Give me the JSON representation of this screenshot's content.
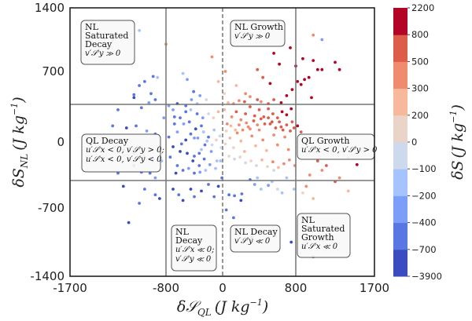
{
  "chart_data": {
    "type": "scatter",
    "title": "",
    "xlabel": "δS_QL (J kg⁻¹)",
    "ylabel": "δS_NL (J kg⁻¹)",
    "xlabel_main": "δ𝒮",
    "xlabel_sub": "QL",
    "xlabel_unit": "(J kg",
    "xlabel_exp": "−1",
    "xlabel_close": ")",
    "ylabel_main": "δS",
    "ylabel_sub": "NL",
    "ylabel_unit": "(J kg",
    "ylabel_exp": "−1",
    "ylabel_close": ")",
    "xlim": [
      -1700,
      1700
    ],
    "ylim": [
      -1400,
      1400
    ],
    "xticks": [
      -1700,
      -800,
      0,
      800,
      1700
    ],
    "xtick_labels": [
      "-1700",
      "-800",
      "0",
      "800",
      "1700"
    ],
    "yticks": [
      1400,
      700,
      0,
      -700,
      -1400
    ],
    "ytick_labels": [
      "1400",
      "700",
      "0",
      "-700",
      "-1400"
    ],
    "grid": false,
    "reference_lines": {
      "vertical_solid": [
        -800,
        800
      ],
      "vertical_dashed": [
        0
      ],
      "horizontal_solid": [
        350,
        -350
      ]
    },
    "colorbar": {
      "label": "δS (J kg⁻¹)",
      "label_main": "δS",
      "label_unit": "(J kg",
      "label_exp": "−1",
      "label_close": ")",
      "boundaries": [
        -3900,
        -700,
        -400,
        -200,
        -100,
        0,
        200,
        300,
        500,
        800,
        2200
      ],
      "tick_labels": [
        "2200",
        "800",
        "500",
        "300",
        "200",
        "0",
        "−100",
        "−200",
        "−400",
        "−700",
        "−3900"
      ],
      "colors": [
        "#3b4cc0",
        "#5977e3",
        "#7b9ff9",
        "#a5c3fe",
        "#cdd9ec",
        "#ead4c8",
        "#f7b89c",
        "#f08b6e",
        "#dc5d4a",
        "#b40426"
      ]
    },
    "annotations": [
      {
        "id": "nl-saturated-decay",
        "lines": [
          "NL",
          "Saturated",
          "Decay"
        ],
        "math": [
          "v′𝒮′y ≫ 0"
        ]
      },
      {
        "id": "nl-growth",
        "lines": [
          "NL Growth"
        ],
        "math": [
          "v′𝒮′y ≫ 0"
        ]
      },
      {
        "id": "ql-decay",
        "lines": [
          "QL Decay"
        ],
        "math": [
          "u′𝒮′x < 0, v′𝒮′y > 0;",
          "u′𝒮′x < 0, v′𝒮′y < 0"
        ]
      },
      {
        "id": "ql-growth",
        "lines": [
          "QL Growth"
        ],
        "math": [
          "u′𝒮′x < 0, v′𝒮′y > 0"
        ]
      },
      {
        "id": "nl-decay-left",
        "lines": [
          "NL",
          "Decay"
        ],
        "math": [
          "u′𝒮′x ≪ 0;",
          "v′𝒮′y ≪ 0"
        ]
      },
      {
        "id": "nl-decay",
        "lines": [
          "NL Decay"
        ],
        "math": [
          "v′𝒮′y ≪ 0"
        ]
      },
      {
        "id": "nl-saturated-growth",
        "lines": [
          "NL",
          "Saturated",
          "Growth"
        ],
        "math": [
          "u′𝒮′x ≪ 0"
        ]
      }
    ],
    "points_note": "Approximately 600 points; values approximate, color = δS",
    "points": [
      [
        -1300,
        1050,
        -700
      ],
      [
        -1050,
        1150,
        -200
      ],
      [
        -800,
        1000,
        300
      ],
      [
        -920,
        650,
        -500
      ],
      [
        -880,
        640,
        -150
      ],
      [
        -1000,
        600,
        -600
      ],
      [
        -1050,
        560,
        -550
      ],
      [
        -940,
        480,
        -600
      ],
      [
        -1100,
        470,
        -450
      ],
      [
        -1100,
        440,
        -900
      ],
      [
        -900,
        420,
        -500
      ],
      [
        -960,
        390,
        -300
      ],
      [
        -760,
        360,
        -400
      ],
      [
        -1030,
        340,
        -600
      ],
      [
        -1250,
        320,
        -600
      ],
      [
        -820,
        240,
        -300
      ],
      [
        -1300,
        160,
        -600
      ],
      [
        -1170,
        140,
        -900
      ],
      [
        -1080,
        160,
        -500
      ],
      [
        -980,
        110,
        -400
      ],
      [
        -900,
        80,
        -500
      ],
      [
        -1280,
        -50,
        -700
      ],
      [
        -1200,
        -90,
        -900
      ],
      [
        -1100,
        -120,
        -600
      ],
      [
        -1000,
        -160,
        -500
      ],
      [
        -920,
        -180,
        -800
      ],
      [
        -840,
        -200,
        -150
      ],
      [
        -1100,
        -250,
        -900
      ],
      [
        -1250,
        -330,
        -600
      ],
      [
        -1030,
        -320,
        -700
      ],
      [
        -950,
        -330,
        -600
      ],
      [
        -900,
        -380,
        -400
      ],
      [
        -1200,
        -470,
        -800
      ],
      [
        -1000,
        -500,
        -700
      ],
      [
        -900,
        -560,
        -700
      ],
      [
        -860,
        -600,
        -900
      ],
      [
        -1050,
        -650,
        -600
      ],
      [
        -1150,
        -850,
        -900
      ],
      [
        -700,
        -500,
        -900
      ],
      [
        -620,
        -560,
        -700
      ],
      [
        -560,
        -620,
        -900
      ],
      [
        -450,
        -500,
        -900
      ],
      [
        -400,
        -580,
        -700
      ],
      [
        -300,
        -520,
        -900
      ],
      [
        -200,
        -450,
        -700
      ],
      [
        -120,
        -580,
        -700
      ],
      [
        -60,
        -470,
        -900
      ],
      [
        -10,
        -380,
        -600
      ],
      [
        70,
        -560,
        -600
      ],
      [
        130,
        -570,
        -700
      ],
      [
        210,
        -550,
        -700
      ],
      [
        300,
        -400,
        -700
      ],
      [
        350,
        -450,
        -400
      ],
      [
        420,
        -500,
        -200
      ],
      [
        500,
        -460,
        -300
      ],
      [
        540,
        -420,
        -150
      ],
      [
        600,
        -500,
        -100
      ],
      [
        650,
        -540,
        -200
      ],
      [
        700,
        -380,
        -150
      ],
      [
        780,
        -500,
        -150
      ],
      [
        200,
        -620,
        -900
      ],
      [
        40,
        -720,
        -700
      ],
      [
        120,
        -800,
        -700
      ],
      [
        320,
        -1000,
        -900
      ],
      [
        750,
        -1050,
        -900
      ],
      [
        900,
        -1100,
        -700
      ],
      [
        1000,
        -1200,
        -800
      ],
      [
        380,
        -380,
        -200
      ],
      [
        560,
        -300,
        -100
      ],
      [
        880,
        -540,
        100
      ],
      [
        920,
        -470,
        400
      ],
      [
        960,
        -350,
        300
      ],
      [
        1100,
        -300,
        350
      ],
      [
        1300,
        -380,
        300
      ],
      [
        1150,
        -250,
        600
      ],
      [
        1050,
        -200,
        700
      ],
      [
        1400,
        -170,
        700
      ],
      [
        1500,
        -240,
        900
      ],
      [
        1250,
        -420,
        600
      ],
      [
        1400,
        -520,
        250
      ],
      [
        1000,
        -600,
        200
      ],
      [
        1000,
        1100,
        300
      ],
      [
        1100,
        1050,
        -300
      ],
      [
        -400,
        -150,
        -700
      ],
      [
        -600,
        -100,
        -900
      ],
      [
        -700,
        -50,
        -800
      ],
      [
        -520,
        20,
        -900
      ],
      [
        -450,
        80,
        -700
      ],
      [
        -380,
        130,
        -900
      ],
      [
        -300,
        160,
        -600
      ],
      [
        -250,
        -30,
        -600
      ],
      [
        -200,
        50,
        -500
      ],
      [
        -160,
        -100,
        -300
      ],
      [
        -120,
        120,
        -200
      ],
      [
        -80,
        -200,
        -150
      ],
      [
        -40,
        60,
        -100
      ],
      [
        -600,
        240,
        -700
      ],
      [
        -520,
        300,
        -500
      ],
      [
        -450,
        320,
        -150
      ],
      [
        -360,
        280,
        -500
      ],
      [
        -280,
        240,
        -300
      ],
      [
        -200,
        280,
        -100
      ],
      [
        -130,
        240,
        100
      ],
      [
        -60,
        300,
        250
      ],
      [
        20,
        320,
        200
      ],
      [
        -680,
        180,
        -600
      ],
      [
        -640,
        100,
        -400
      ],
      [
        -580,
        -20,
        -500
      ],
      [
        -500,
        -120,
        -900
      ],
      [
        -420,
        -200,
        -800
      ],
      [
        -330,
        -250,
        -700
      ],
      [
        -260,
        -180,
        -500
      ],
      [
        -180,
        -240,
        -400
      ],
      [
        -100,
        -280,
        -200
      ],
      [
        -30,
        -200,
        -150
      ],
      [
        -640,
        -250,
        -600
      ],
      [
        -560,
        -300,
        -700
      ],
      [
        -480,
        -280,
        -400
      ],
      [
        -400,
        -330,
        -500
      ],
      [
        -320,
        -320,
        -300
      ],
      [
        -240,
        -300,
        -200
      ],
      [
        -700,
        320,
        -300
      ],
      [
        -660,
        -330,
        -800
      ],
      [
        -760,
        50,
        -500
      ],
      [
        -740,
        -160,
        -600
      ],
      [
        -350,
        40,
        -300
      ],
      [
        -300,
        -80,
        -150
      ],
      [
        -220,
        10,
        -200
      ],
      [
        -150,
        -30,
        -50
      ],
      [
        -90,
        20,
        50
      ],
      [
        -20,
        -60,
        -100
      ],
      [
        -680,
        250,
        -500
      ],
      [
        -550,
        180,
        -300
      ],
      [
        -470,
        200,
        -600
      ],
      [
        -400,
        40,
        -400
      ],
      [
        -330,
        -120,
        -700
      ],
      [
        -270,
        100,
        -150
      ],
      [
        30,
        -20,
        150
      ],
      [
        80,
        40,
        250
      ],
      [
        120,
        -60,
        150
      ],
      [
        160,
        90,
        300
      ],
      [
        200,
        10,
        250
      ],
      [
        240,
        -100,
        200
      ],
      [
        280,
        150,
        400
      ],
      [
        320,
        60,
        350
      ],
      [
        360,
        -40,
        250
      ],
      [
        400,
        120,
        450
      ],
      [
        440,
        20,
        300
      ],
      [
        480,
        -90,
        250
      ],
      [
        520,
        180,
        500
      ],
      [
        560,
        70,
        400
      ],
      [
        600,
        -30,
        300
      ],
      [
        640,
        150,
        550
      ],
      [
        680,
        50,
        450
      ],
      [
        720,
        -80,
        350
      ],
      [
        760,
        200,
        600
      ],
      [
        50,
        180,
        300
      ],
      [
        100,
        250,
        400
      ],
      [
        150,
        300,
        500
      ],
      [
        200,
        220,
        450
      ],
      [
        250,
        280,
        600
      ],
      [
        300,
        350,
        600
      ],
      [
        350,
        260,
        550
      ],
      [
        400,
        320,
        700
      ],
      [
        450,
        250,
        650
      ],
      [
        500,
        330,
        700
      ],
      [
        550,
        280,
        650
      ],
      [
        600,
        240,
        700
      ],
      [
        650,
        300,
        900
      ],
      [
        700,
        270,
        900
      ],
      [
        750,
        330,
        1000
      ],
      [
        70,
        -150,
        100
      ],
      [
        130,
        -180,
        -50
      ],
      [
        190,
        -160,
        100
      ],
      [
        250,
        -220,
        -100
      ],
      [
        310,
        -200,
        150
      ],
      [
        370,
        -250,
        -50
      ],
      [
        430,
        -190,
        250
      ],
      [
        490,
        -260,
        150
      ],
      [
        550,
        -210,
        300
      ],
      [
        610,
        -270,
        200
      ],
      [
        670,
        -230,
        350
      ],
      [
        730,
        -190,
        450
      ],
      [
        790,
        -250,
        300
      ],
      [
        40,
        110,
        150
      ],
      [
        90,
        160,
        250
      ],
      [
        140,
        120,
        200
      ],
      [
        180,
        170,
        300
      ],
      [
        220,
        120,
        350
      ],
      [
        260,
        190,
        400
      ],
      [
        300,
        130,
        350
      ],
      [
        340,
        210,
        500
      ],
      [
        380,
        170,
        450
      ],
      [
        420,
        230,
        550
      ],
      [
        460,
        180,
        500
      ],
      [
        500,
        240,
        600
      ],
      [
        540,
        200,
        550
      ],
      [
        580,
        140,
        500
      ],
      [
        620,
        200,
        600
      ],
      [
        660,
        120,
        500
      ],
      [
        700,
        170,
        600
      ],
      [
        740,
        110,
        500
      ],
      [
        780,
        140,
        700
      ],
      [
        820,
        160,
        800
      ],
      [
        860,
        100,
        700
      ],
      [
        30,
        700,
        300
      ],
      [
        150,
        560,
        250
      ],
      [
        250,
        480,
        400
      ],
      [
        300,
        450,
        300
      ],
      [
        380,
        420,
        500
      ],
      [
        420,
        400,
        350
      ],
      [
        500,
        380,
        600
      ],
      [
        560,
        420,
        700
      ],
      [
        640,
        390,
        900
      ],
      [
        700,
        460,
        1000
      ],
      [
        760,
        520,
        1000
      ],
      [
        820,
        600,
        1000
      ],
      [
        860,
        570,
        900
      ],
      [
        900,
        620,
        1000
      ],
      [
        980,
        440,
        1000
      ],
      [
        1050,
        720,
        1000
      ],
      [
        1100,
        720,
        1100
      ],
      [
        1250,
        800,
        1000
      ],
      [
        1300,
        720,
        1200
      ],
      [
        950,
        640,
        1000
      ],
      [
        1000,
        820,
        1000
      ],
      [
        880,
        840,
        1200
      ],
      [
        800,
        760,
        1100
      ],
      [
        740,
        960,
        1000
      ],
      [
        560,
        900,
        1000
      ],
      [
        620,
        780,
        900
      ],
      [
        520,
        580,
        800
      ],
      [
        440,
        640,
        600
      ],
      [
        380,
        720,
        500
      ],
      [
        -150,
        860,
        300
      ],
      [
        -60,
        600,
        200
      ],
      [
        20,
        480,
        100
      ],
      [
        -230,
        420,
        -100
      ],
      [
        -320,
        460,
        -300
      ],
      [
        -410,
        500,
        -500
      ],
      [
        -500,
        620,
        -400
      ],
      [
        -560,
        680,
        -200
      ],
      [
        -640,
        380,
        -800
      ],
      [
        60,
        390,
        200
      ],
      [
        120,
        380,
        300
      ],
      [
        180,
        410,
        450
      ],
      [
        240,
        400,
        500
      ],
      [
        -520,
        360,
        -600
      ],
      [
        -440,
        420,
        -300
      ],
      [
        -360,
        380,
        -150
      ]
    ]
  },
  "figure": {
    "colorbar_present": true
  }
}
